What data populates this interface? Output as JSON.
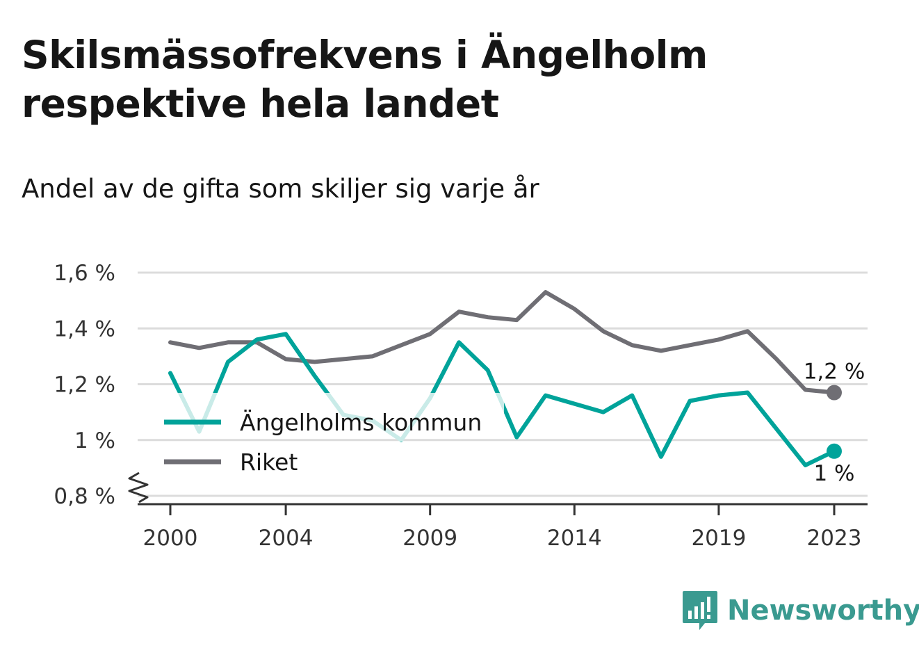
{
  "title": "Skilsmässofrekvens i Ängelholm respektive hela landet",
  "subtitle": "Andel av de gifta som skiljer sig varje år",
  "brand": {
    "name": "Newsworthy",
    "icon": "newsworthy-logo-icon",
    "color": "#3a9a90"
  },
  "chart_data": {
    "type": "line",
    "x": [
      2000,
      2001,
      2002,
      2003,
      2004,
      2005,
      2006,
      2007,
      2008,
      2009,
      2010,
      2011,
      2012,
      2013,
      2014,
      2015,
      2016,
      2017,
      2018,
      2019,
      2020,
      2021,
      2022,
      2023
    ],
    "x_tick_values": [
      2000,
      2004,
      2009,
      2014,
      2019,
      2023
    ],
    "x_tick_labels": [
      "2000",
      "2004",
      "2009",
      "2014",
      "2019",
      "2023"
    ],
    "y_ticks": [
      0.8,
      1.0,
      1.2,
      1.4,
      1.6
    ],
    "y_tick_labels": [
      "0,8 %",
      "1 %",
      "1,2 %",
      "1,4 %",
      "1,6 %"
    ],
    "ylim": [
      0.78,
      1.62
    ],
    "y_axis_break": true,
    "grid": true,
    "legend_position": "lower-left",
    "series": [
      {
        "name": "Ängelholms kommun",
        "color": "#00a39a",
        "faded_color": "#c9ebe8",
        "values": [
          1.24,
          1.03,
          1.28,
          1.36,
          1.38,
          1.23,
          1.09,
          1.07,
          1.0,
          1.15,
          1.35,
          1.25,
          1.01,
          1.16,
          1.13,
          1.1,
          1.16,
          0.94,
          1.14,
          1.16,
          1.17,
          1.04,
          0.91,
          0.96
        ],
        "end_label": "1 %"
      },
      {
        "name": "Riket",
        "color": "#6f6e74",
        "values": [
          1.35,
          1.33,
          1.35,
          1.35,
          1.29,
          1.28,
          1.29,
          1.3,
          1.34,
          1.38,
          1.46,
          1.44,
          1.43,
          1.53,
          1.47,
          1.39,
          1.34,
          1.32,
          1.34,
          1.36,
          1.39,
          1.29,
          1.18,
          1.17
        ],
        "end_label": "1,2 %"
      }
    ]
  }
}
